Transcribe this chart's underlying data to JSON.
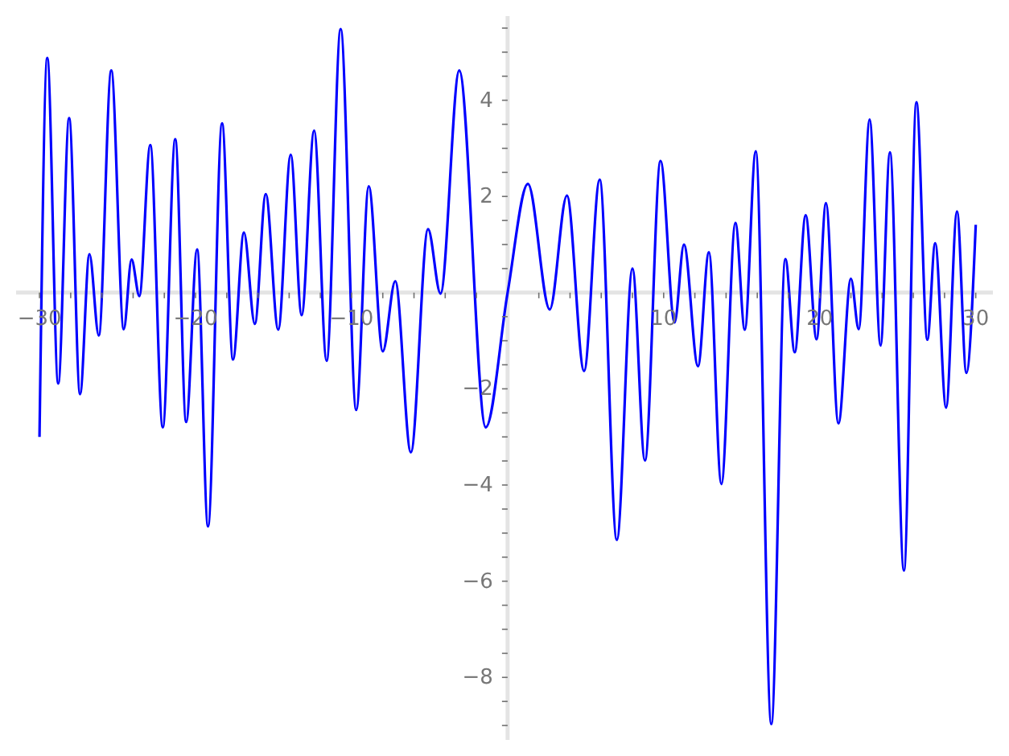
{
  "chart_data": {
    "type": "line",
    "color": "#0000ff",
    "x": [
      -30.0,
      -29.5,
      -28.8,
      -28.1,
      -27.4,
      -26.8,
      -26.2,
      -25.4,
      -24.6,
      -24.1,
      -23.6,
      -22.9,
      -22.1,
      -21.3,
      -20.6,
      -19.9,
      -19.2,
      -18.3,
      -17.6,
      -16.9,
      -16.2,
      -15.5,
      -14.7,
      -13.9,
      -13.2,
      -12.4,
      -11.6,
      -10.7,
      -9.7,
      -8.9,
      -8.0,
      -7.2,
      -6.2,
      -5.1,
      -4.3,
      -3.1,
      -1.4,
      0.0,
      1.3,
      2.7,
      3.8,
      4.9,
      5.9,
      7.0,
      8.0,
      8.8,
      9.8,
      10.7,
      11.3,
      12.2,
      12.9,
      13.7,
      14.6,
      15.2,
      15.9,
      16.9,
      17.8,
      18.4,
      19.1,
      19.8,
      20.4,
      21.2,
      22.0,
      22.5,
      23.2,
      23.9,
      24.5,
      25.4,
      26.2,
      26.9,
      27.4,
      28.1,
      28.8,
      29.4,
      30.0
    ],
    "values": [
      -3.0,
      4.88,
      -1.89,
      3.63,
      -2.11,
      0.8,
      -0.89,
      4.62,
      -0.76,
      0.69,
      -0.07,
      3.07,
      -2.8,
      3.19,
      -2.69,
      0.9,
      -4.86,
      3.52,
      -1.39,
      1.25,
      -0.65,
      2.05,
      -0.77,
      2.87,
      -0.47,
      3.37,
      -1.42,
      5.48,
      -2.44,
      2.21,
      -1.22,
      0.24,
      -3.32,
      1.32,
      -0.02,
      4.62,
      -2.8,
      0.0,
      2.26,
      -0.35,
      2.02,
      -1.63,
      2.35,
      -5.14,
      0.5,
      -3.49,
      2.74,
      -0.62,
      1.0,
      -1.53,
      0.84,
      -3.98,
      1.45,
      -0.77,
      2.94,
      -8.97,
      0.7,
      -1.24,
      1.61,
      -0.97,
      1.86,
      -2.72,
      0.29,
      -0.76,
      3.6,
      -1.1,
      2.92,
      -5.78,
      3.96,
      -0.98,
      1.03,
      -2.39,
      1.69,
      -1.67,
      1.41
    ],
    "xlim": [
      -31.5,
      31.1
    ],
    "ylim": [
      -9.3,
      5.75
    ],
    "xticks": [
      {
        "value": -30,
        "label": "−30"
      },
      {
        "value": -28,
        "label": null
      },
      {
        "value": -26,
        "label": null
      },
      {
        "value": -24,
        "label": null
      },
      {
        "value": -22,
        "label": null
      },
      {
        "value": -20,
        "label": "−20"
      },
      {
        "value": -18,
        "label": null
      },
      {
        "value": -16,
        "label": null
      },
      {
        "value": -14,
        "label": null
      },
      {
        "value": -12,
        "label": null
      },
      {
        "value": -10,
        "label": "−10"
      },
      {
        "value": -8,
        "label": null
      },
      {
        "value": -6,
        "label": null
      },
      {
        "value": -4,
        "label": null
      },
      {
        "value": -2,
        "label": null
      },
      {
        "value": 2,
        "label": null
      },
      {
        "value": 4,
        "label": null
      },
      {
        "value": 6,
        "label": null
      },
      {
        "value": 8,
        "label": null
      },
      10,
      {
        "value": 12,
        "label": null
      },
      {
        "value": 14,
        "label": null
      },
      {
        "value": 16,
        "label": null
      },
      {
        "value": 18,
        "label": null
      },
      20,
      {
        "value": 22,
        "label": null
      },
      {
        "value": 24,
        "label": null
      },
      {
        "value": 26,
        "label": null
      },
      {
        "value": 28,
        "label": null
      },
      30
    ],
    "yticks": [
      {
        "value": -9,
        "label": null
      },
      {
        "value": -8.5,
        "label": null
      },
      {
        "value": -8,
        "label": "−8"
      },
      {
        "value": -7.5,
        "label": null
      },
      {
        "value": -7,
        "label": null
      },
      {
        "value": -6.5,
        "label": null
      },
      {
        "value": -6,
        "label": "−6"
      },
      {
        "value": -5.5,
        "label": null
      },
      {
        "value": -5,
        "label": null
      },
      {
        "value": -4.5,
        "label": null
      },
      {
        "value": -4,
        "label": "−4"
      },
      {
        "value": -3.5,
        "label": null
      },
      {
        "value": -3,
        "label": null
      },
      {
        "value": -2.5,
        "label": null
      },
      {
        "value": -2,
        "label": "−2"
      },
      {
        "value": -1.5,
        "label": null
      },
      {
        "value": -1,
        "label": null
      },
      {
        "value": -0.5,
        "label": null
      },
      {
        "value": 0.5,
        "label": null
      },
      {
        "value": 1,
        "label": null
      },
      {
        "value": 1.5,
        "label": null
      },
      2,
      {
        "value": 2.5,
        "label": null
      },
      {
        "value": 3,
        "label": null
      },
      {
        "value": 3.5,
        "label": null
      },
      4,
      {
        "value": 4.5,
        "label": null
      },
      {
        "value": 5,
        "label": null
      },
      {
        "value": 5.5,
        "label": null
      }
    ]
  }
}
